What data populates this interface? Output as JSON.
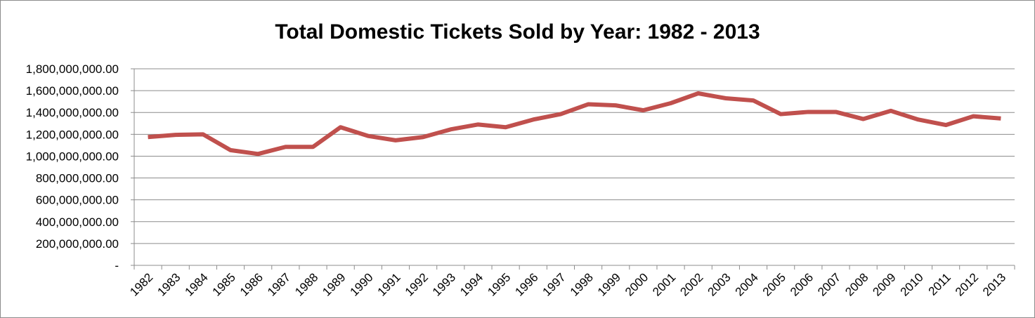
{
  "chart_data": {
    "type": "line",
    "title": "Total Domestic Tickets Sold by Year: 1982 - 2013",
    "xlabel": "",
    "ylabel": "",
    "ylim": [
      0,
      1800000000
    ],
    "yticks": [
      {
        "value": 0,
        "label": "-"
      },
      {
        "value": 200000000,
        "label": "200,000,000.00"
      },
      {
        "value": 400000000,
        "label": "400,000,000.00"
      },
      {
        "value": 600000000,
        "label": "600,000,000.00"
      },
      {
        "value": 800000000,
        "label": "800,000,000.00"
      },
      {
        "value": 1000000000,
        "label": "1,000,000,000.00"
      },
      {
        "value": 1200000000,
        "label": "1,200,000,000.00"
      },
      {
        "value": 1400000000,
        "label": "1,400,000,000.00"
      },
      {
        "value": 1600000000,
        "label": "1,600,000,000.00"
      },
      {
        "value": 1800000000,
        "label": "1,800,000,000.00"
      }
    ],
    "grid": true,
    "legend": "none",
    "series_color": "#c0504d",
    "categories": [
      "1982",
      "1983",
      "1984",
      "1985",
      "1986",
      "1987",
      "1988",
      "1989",
      "1990",
      "1991",
      "1992",
      "1993",
      "1994",
      "1995",
      "1996",
      "1997",
      "1998",
      "1999",
      "2000",
      "2001",
      "2002",
      "2003",
      "2004",
      "2005",
      "2006",
      "2007",
      "2008",
      "2009",
      "2010",
      "2011",
      "2012",
      "2013"
    ],
    "series": [
      {
        "values": [
          1175000000,
          1195000000,
          1200000000,
          1055000000,
          1020000000,
          1085000000,
          1085000000,
          1265000000,
          1185000000,
          1145000000,
          1175000000,
          1245000000,
          1290000000,
          1265000000,
          1335000000,
          1385000000,
          1475000000,
          1465000000,
          1420000000,
          1485000000,
          1575000000,
          1530000000,
          1510000000,
          1385000000,
          1405000000,
          1405000000,
          1340000000,
          1415000000,
          1335000000,
          1285000000,
          1365000000,
          1345000000
        ]
      }
    ]
  }
}
